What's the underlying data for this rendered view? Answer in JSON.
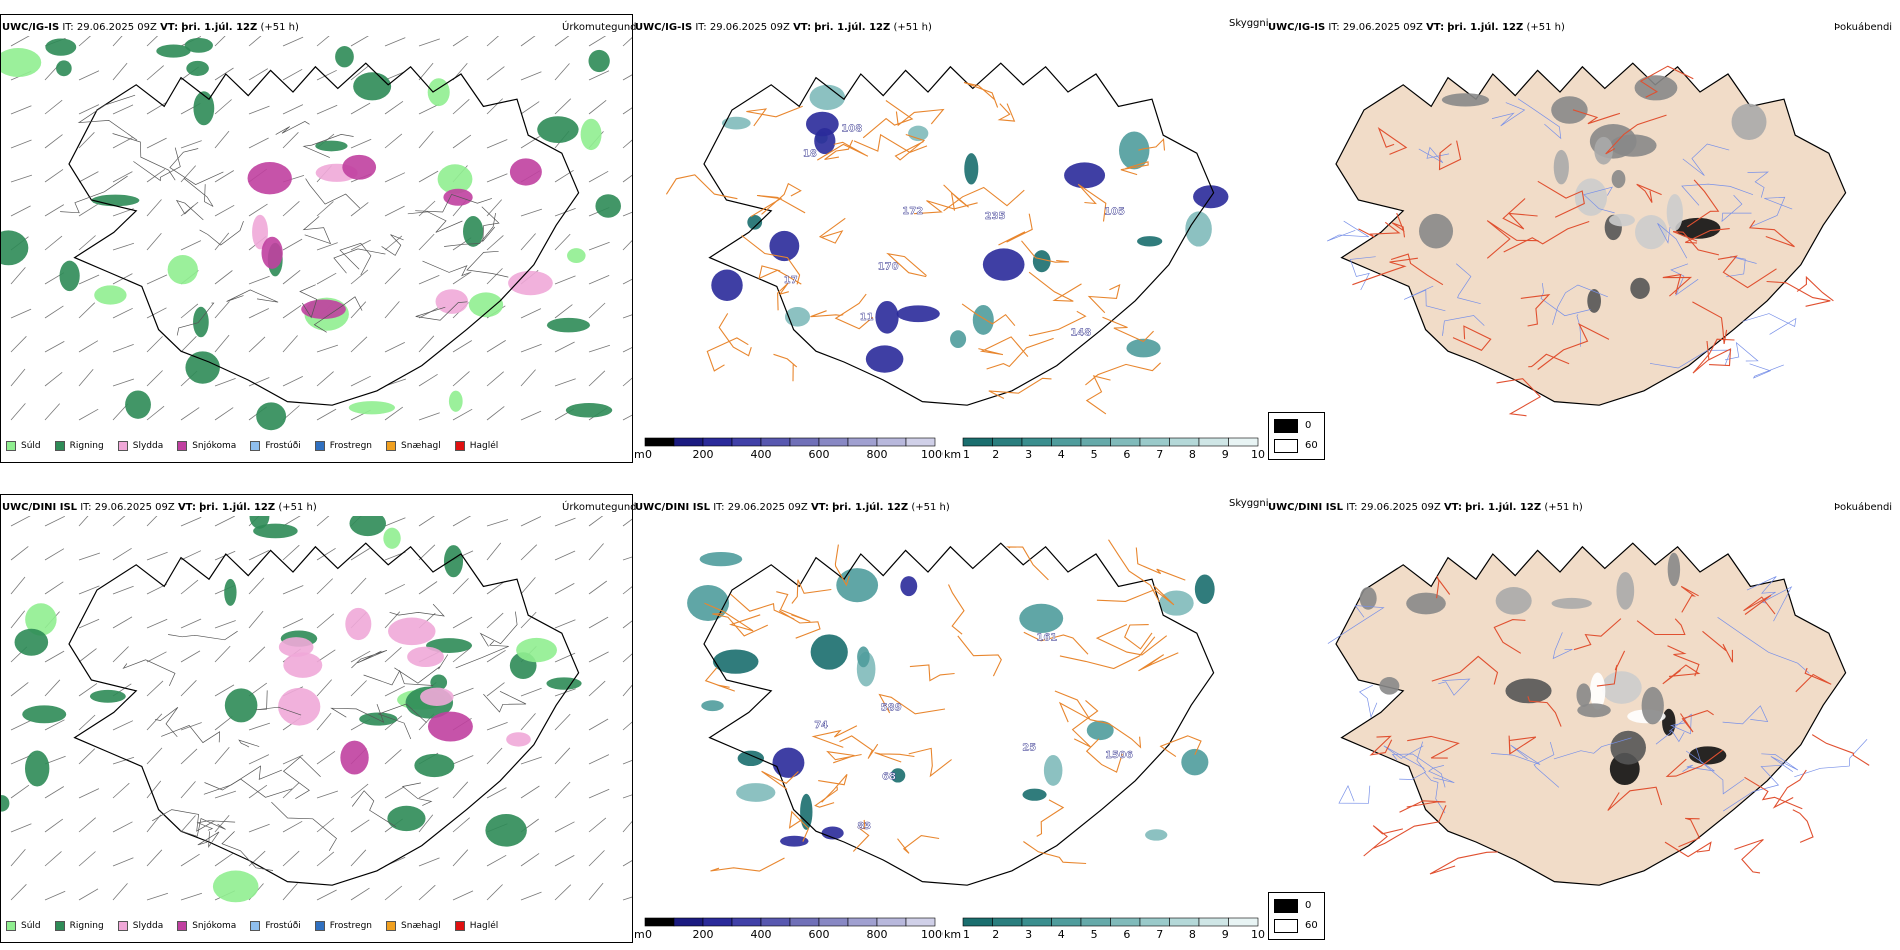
{
  "rows": [
    {
      "model": "UWC/IG-IS",
      "it_label": "IT:",
      "it_value": "29.06.2025 09Z",
      "vt_label": "VT:",
      "vt_value": "þri. 1.júl. 12Z",
      "lead": "(+51 h)",
      "precip_title": "Úrkomutegund",
      "ceiling_title": "Skyggni",
      "fog_title": "Þokuábendi",
      "labels": [
        "108",
        "105",
        "172",
        "148",
        "17",
        "18",
        "235",
        "11",
        "170"
      ]
    },
    {
      "model": "UWC/DINI ISL",
      "it_label": "IT:",
      "it_value": "29.06.2025 09Z",
      "vt_label": "VT:",
      "vt_value": "þri. 1.júl. 12Z",
      "lead": "(+51 h)",
      "precip_title": "Úrkomutegund",
      "ceiling_title": "Skyggni",
      "fog_title": "Þokuábendi",
      "labels": [
        "83",
        "25",
        "589",
        "68",
        "1506",
        "161",
        "74"
      ]
    }
  ],
  "precip_legend": [
    {
      "label": "Súld",
      "color": "#90ee90"
    },
    {
      "label": "Rigning",
      "color": "#2e8b57"
    },
    {
      "label": "Slydda",
      "color": "#f0a8d8"
    },
    {
      "label": "Snjókoma",
      "color": "#c040a0"
    },
    {
      "label": "Frostúði",
      "color": "#8fbfef"
    },
    {
      "label": "Frostregn",
      "color": "#3070c0"
    },
    {
      "label": "Snæhagl",
      "color": "#f0a020"
    },
    {
      "label": "Haglél",
      "color": "#e01010"
    }
  ],
  "cloud_base_bar": {
    "unit": "m",
    "ticks": [
      "0",
      "200",
      "400",
      "600",
      "800",
      "1000"
    ],
    "colors": [
      "#000000",
      "#1a1a80",
      "#2a2a9a",
      "#4040a8",
      "#5858b0",
      "#7070b8",
      "#8888c4",
      "#a0a0d0",
      "#b8b8dc",
      "#d0d0e8"
    ]
  },
  "visibility_bar": {
    "unit": "km",
    "ticks": [
      "1",
      "2",
      "3",
      "4",
      "5",
      "6",
      "7",
      "8",
      "9",
      "10"
    ],
    "colors": [
      "#1a6e6e",
      "#2a7e7e",
      "#3a8e8e",
      "#4f9c9c",
      "#66aaaa",
      "#80baba",
      "#9acaca",
      "#b4d8d8",
      "#cfe6e6",
      "#e8f4f4"
    ]
  },
  "fog_key": {
    "values": [
      "0",
      "60"
    ],
    "colors": [
      "#000000",
      "#ffffff"
    ]
  },
  "colors": {
    "road_orange": "#e8862e",
    "fog_land": "#f1dcc8",
    "fog_road": "#e05030",
    "river_blue": "#7890e8",
    "coast": "#000000"
  }
}
